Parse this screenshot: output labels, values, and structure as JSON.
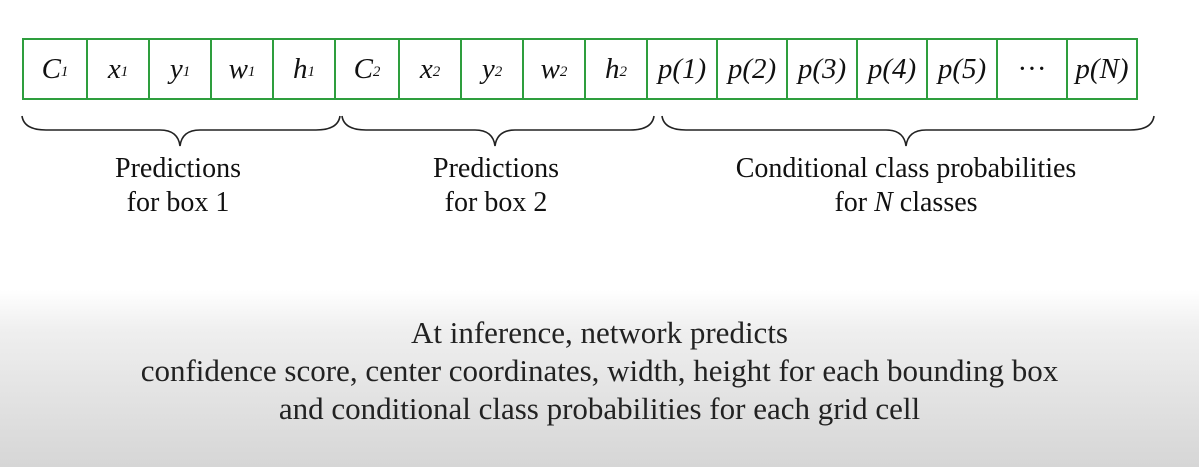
{
  "strip": {
    "cells": [
      {
        "base": "C",
        "sub": "1",
        "italic": true
      },
      {
        "base": "x",
        "sub": "1",
        "italic": true
      },
      {
        "base": "y",
        "sub": "1",
        "italic": true
      },
      {
        "base": "w",
        "sub": "1",
        "italic": true
      },
      {
        "base": "h",
        "sub": "1",
        "italic": true
      },
      {
        "base": "C",
        "sub": "2",
        "italic": true
      },
      {
        "base": "x",
        "sub": "2",
        "italic": true
      },
      {
        "base": "y",
        "sub": "2",
        "italic": true
      },
      {
        "base": "w",
        "sub": "2",
        "italic": true
      },
      {
        "base": "h",
        "sub": "2",
        "italic": true
      },
      {
        "base": "p(1)",
        "sub": "",
        "italic": true
      },
      {
        "base": "p(2)",
        "sub": "",
        "italic": true
      },
      {
        "base": "p(3)",
        "sub": "",
        "italic": true
      },
      {
        "base": "p(4)",
        "sub": "",
        "italic": true
      },
      {
        "base": "p(5)",
        "sub": "",
        "italic": true
      },
      {
        "base": "···",
        "sub": "",
        "italic": false
      },
      {
        "base": "p(N)",
        "sub": "",
        "italic": true
      }
    ],
    "border_color": "#2e9e3e"
  },
  "groups": {
    "box1": {
      "line1": "Predictions",
      "line2": "for box 1"
    },
    "box2": {
      "line1": "Predictions",
      "line2": "for box 2"
    },
    "classes": {
      "line1": "Conditional class probabilities",
      "line2_pre": "for ",
      "line2_var": "N",
      "line2_post": " classes"
    }
  },
  "summary": {
    "line1": "At inference, network predicts",
    "line2": "confidence score, center coordinates, width, height for each bounding box",
    "line3": "and conditional class probabilities for each grid cell"
  }
}
